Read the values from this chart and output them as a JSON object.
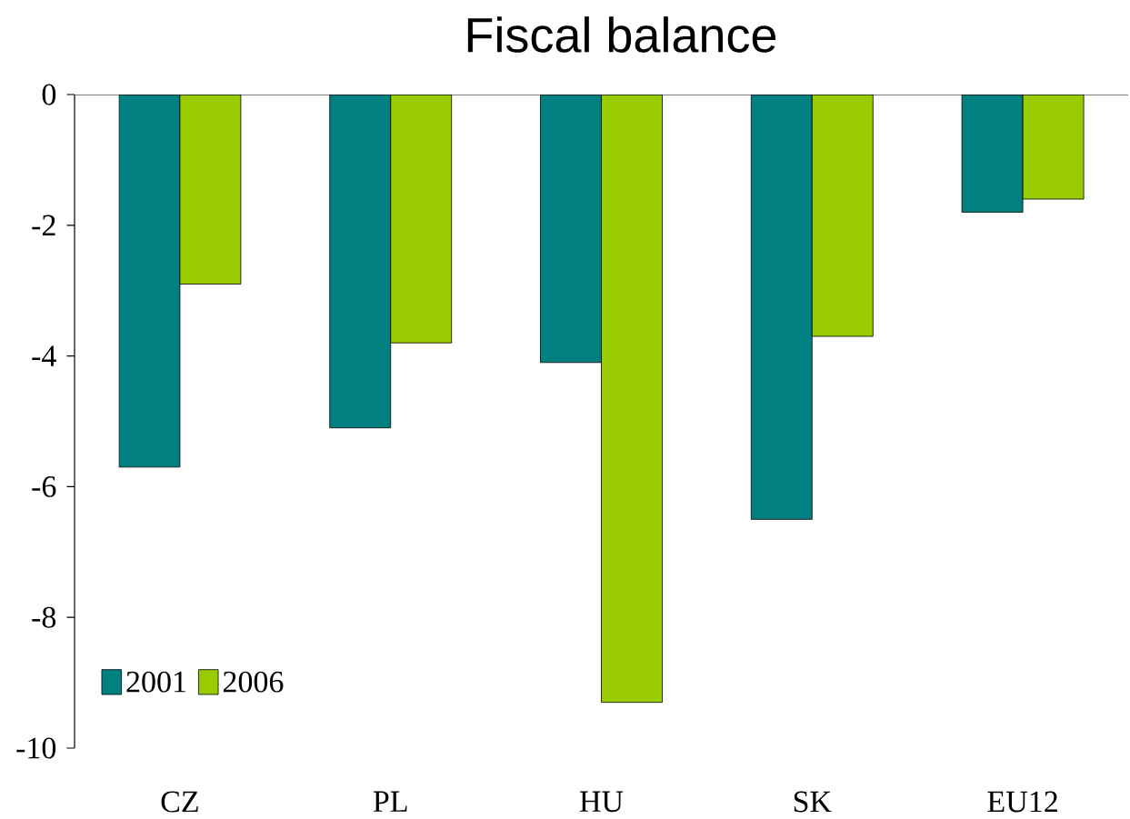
{
  "chart_data": {
    "type": "bar",
    "title": "Fiscal balance",
    "categories": [
      "CZ",
      "PL",
      "HU",
      "SK",
      "EU12"
    ],
    "series": [
      {
        "name": "2001",
        "color": "#008080",
        "values": [
          -5.7,
          -5.1,
          -4.1,
          -6.5,
          -1.8
        ]
      },
      {
        "name": "2006",
        "color": "#99cc00",
        "values": [
          -2.9,
          -3.8,
          -9.3,
          -3.7,
          -1.6
        ]
      }
    ],
    "ylim": [
      -10,
      0
    ],
    "yticks": [
      0,
      -2,
      -4,
      -6,
      -8,
      -10
    ],
    "legend": "bottom left"
  }
}
